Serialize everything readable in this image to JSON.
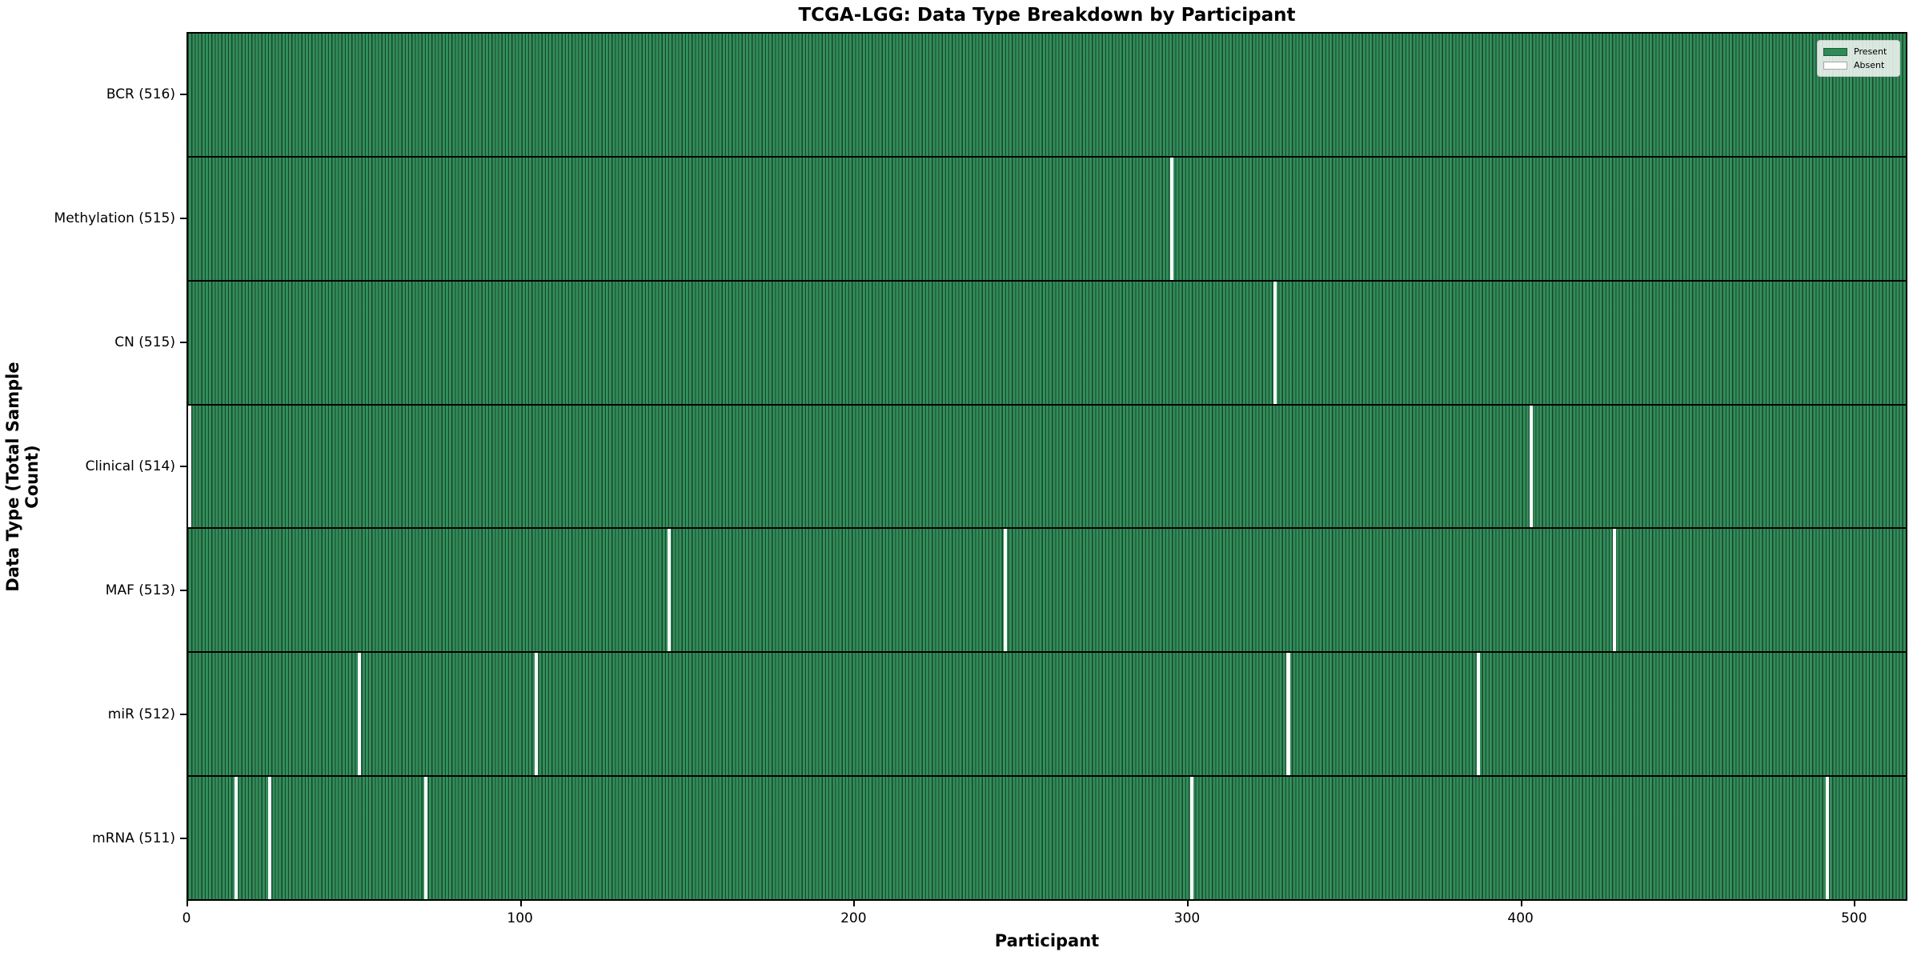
{
  "title": "TCGA-LGG: Data Type Breakdown by Participant",
  "xlabel": "Participant",
  "ylabel": "Data Type (Total Sample Count)",
  "legend": {
    "present_label": "Present",
    "absent_label": "Absent"
  },
  "colors": {
    "present": "#2e8b57",
    "absent": "#ffffff",
    "cell_edge": "rgba(0,0,0,0.5)",
    "axis": "#000000",
    "legend_border": "#cccccc"
  },
  "chart_data": {
    "type": "heatmap",
    "title": "TCGA-LGG: Data Type Breakdown by Participant",
    "xlabel": "Participant",
    "ylabel": "Data Type (Total Sample Count)",
    "n_participants": 516,
    "x_ticks": [
      0,
      100,
      200,
      300,
      400,
      500
    ],
    "xlim": [
      0,
      516
    ],
    "grid": false,
    "legend_position": "upper right",
    "legend": [
      {
        "label": "Present",
        "color": "#2e8b57"
      },
      {
        "label": "Absent",
        "color": "#ffffff"
      }
    ],
    "rows": [
      {
        "data_type": "BCR",
        "label": "BCR (516)",
        "present_count": 516,
        "absent_participants": []
      },
      {
        "data_type": "Methylation",
        "label": "Methylation (515)",
        "present_count": 515,
        "absent_participants": [
          295
        ]
      },
      {
        "data_type": "CN",
        "label": "CN (515)",
        "present_count": 515,
        "absent_participants": [
          326
        ]
      },
      {
        "data_type": "Clinical",
        "label": "Clinical (514)",
        "present_count": 514,
        "absent_participants": [
          0,
          403
        ]
      },
      {
        "data_type": "MAF",
        "label": "MAF (513)",
        "present_count": 513,
        "absent_participants": [
          144,
          245,
          428
        ]
      },
      {
        "data_type": "miR",
        "label": "miR (512)",
        "present_count": 512,
        "absent_participants": [
          51,
          104,
          330,
          387
        ]
      },
      {
        "data_type": "mRNA",
        "label": "mRNA (511)",
        "present_count": 511,
        "absent_participants": [
          14,
          24,
          71,
          301,
          492
        ]
      }
    ]
  }
}
